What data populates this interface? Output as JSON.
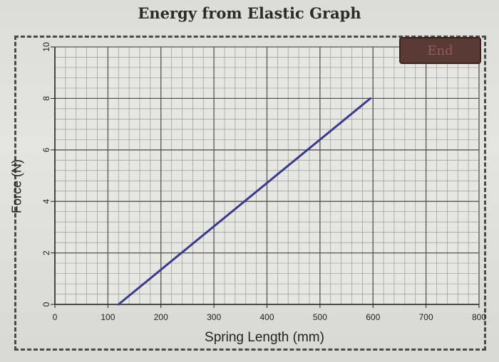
{
  "app": {
    "title": "Energy from Elastic Graph",
    "end_label": "End"
  },
  "colors": {
    "line": "#3a3a8c",
    "grid_major": "#555555",
    "grid_minor": "#9a9a9a",
    "axis": "#222222",
    "end_button": "#5b3a35"
  },
  "chart_data": {
    "type": "line",
    "title": "Energy from Elastic Graph",
    "xlabel": "Spring Length (mm)",
    "ylabel": "Force (N)",
    "xlim": [
      0,
      800
    ],
    "ylim": [
      0,
      10
    ],
    "x_ticks": [
      "0",
      "100",
      "200",
      "300",
      "400",
      "500",
      "600",
      "700",
      "800"
    ],
    "y_ticks": [
      "0",
      "2",
      "4",
      "6",
      "8",
      "10"
    ],
    "grid": true,
    "series": [
      {
        "x": [
          120,
          595
        ],
        "y": [
          0,
          8
        ]
      }
    ]
  }
}
